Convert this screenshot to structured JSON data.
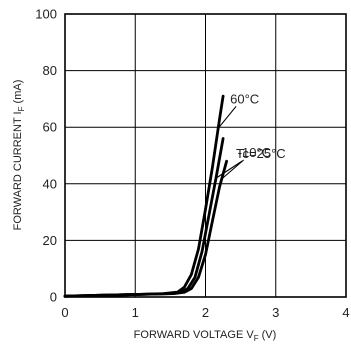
{
  "chart_data": {
    "type": "line",
    "xlabel": "FORWARD VOLTAGE",
    "xlabel_symbol": "V",
    "xlabel_subscript": "F",
    "xlabel_unit": "(V)",
    "ylabel": "FORWARD CURRENT",
    "ylabel_symbol": "I",
    "ylabel_subscript": "F",
    "ylabel_unit": "(mA)",
    "xlim": [
      0,
      4
    ],
    "ylim": [
      0,
      100
    ],
    "x_ticks": [
      "0",
      "1",
      "2",
      "3",
      "4"
    ],
    "y_ticks": [
      "0",
      "20",
      "40",
      "60",
      "80",
      "100"
    ],
    "grid": true,
    "legend": "none",
    "series": [
      {
        "name": "60°C",
        "points": [
          [
            0,
            0.3
          ],
          [
            0.5,
            0.6
          ],
          [
            1.0,
            0.9
          ],
          [
            1.4,
            1.2
          ],
          [
            1.6,
            1.7
          ],
          [
            1.7,
            3.5
          ],
          [
            1.8,
            8
          ],
          [
            1.9,
            17
          ],
          [
            2.0,
            31
          ],
          [
            2.1,
            46
          ],
          [
            2.2,
            63
          ],
          [
            2.25,
            71
          ]
        ]
      },
      {
        "name": "Tc=25°C",
        "points": [
          [
            0,
            0.3
          ],
          [
            0.5,
            0.6
          ],
          [
            1.0,
            0.9
          ],
          [
            1.5,
            1.2
          ],
          [
            1.65,
            1.7
          ],
          [
            1.75,
            3
          ],
          [
            1.85,
            7
          ],
          [
            1.95,
            16
          ],
          [
            2.05,
            29
          ],
          [
            2.15,
            42
          ],
          [
            2.25,
            56
          ]
        ]
      },
      {
        "name": "-10°C",
        "points": [
          [
            0,
            0.3
          ],
          [
            0.5,
            0.6
          ],
          [
            1.0,
            0.9
          ],
          [
            1.55,
            1.2
          ],
          [
            1.7,
            1.7
          ],
          [
            1.8,
            3
          ],
          [
            1.9,
            7
          ],
          [
            2.0,
            15
          ],
          [
            2.1,
            27
          ],
          [
            2.2,
            39
          ],
          [
            2.3,
            48
          ]
        ]
      }
    ],
    "annotations": [
      {
        "text": "60°C",
        "series": 0,
        "at_x": 2.18
      },
      {
        "text": "Tc=25°C",
        "series": 1,
        "at_x": 2.15
      },
      {
        "text": "-10°C",
        "series": 2,
        "at_x": 2.23
      }
    ]
  }
}
